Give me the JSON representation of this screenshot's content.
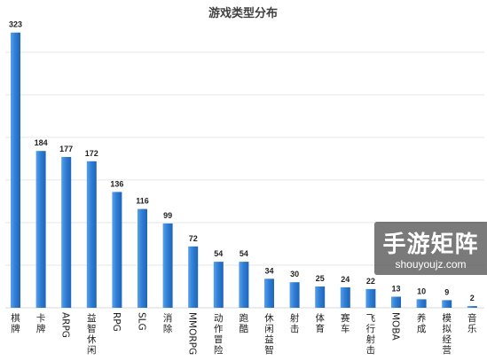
{
  "chart_data": {
    "type": "bar",
    "title": "游戏类型分布",
    "categories": [
      "棋牌",
      "卡牌",
      "ARPG",
      "益智休闲",
      "RPG",
      "SLG",
      "消除",
      "MMORPG",
      "动作冒险",
      "跑酷",
      "休闲益智",
      "射击",
      "体育",
      "赛车",
      "飞行射击",
      "MOBA",
      "养成",
      "模拟经营",
      "音乐"
    ],
    "values": [
      323,
      184,
      177,
      172,
      136,
      116,
      99,
      72,
      54,
      54,
      34,
      30,
      25,
      24,
      22,
      13,
      10,
      9,
      2
    ],
    "xlabel": "",
    "ylabel": "",
    "ylim": [
      0,
      330
    ],
    "grid": true,
    "legend": "none",
    "bar_color": "#2f7fd6"
  },
  "watermark": {
    "main": "手游矩阵",
    "sub": "shouyoujz.com"
  }
}
